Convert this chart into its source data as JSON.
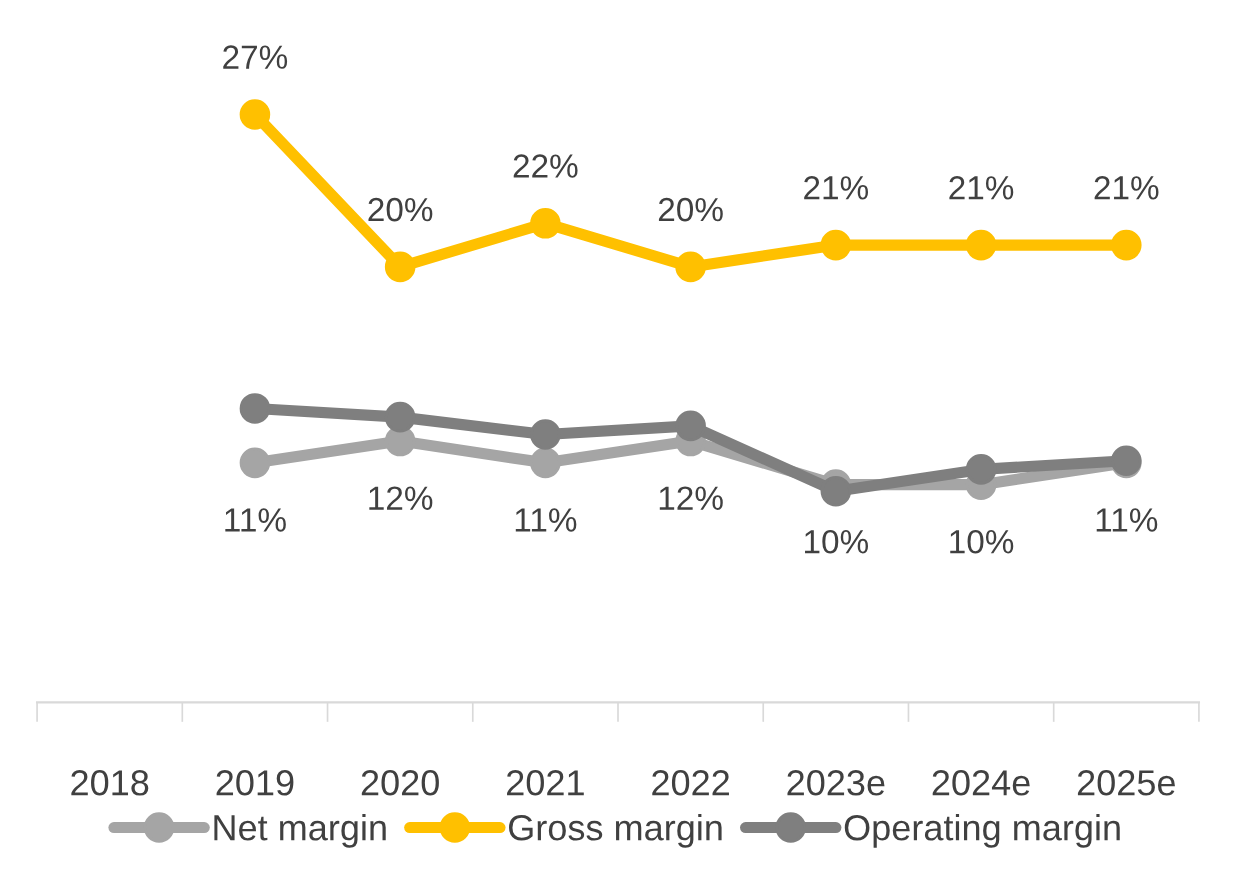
{
  "chart_data": {
    "type": "line",
    "categories": [
      "2018",
      "2019",
      "2020",
      "2021",
      "2022",
      "2023e",
      "2024e",
      "2025e"
    ],
    "series": [
      {
        "name": "Net margin",
        "color": "#a5a5a5",
        "values": [
          null,
          11,
          12,
          11,
          12,
          10,
          10,
          11
        ],
        "value_labels": [
          null,
          "11%",
          "12%",
          "11%",
          "12%",
          "10%",
          "10%",
          "11%"
        ]
      },
      {
        "name": "Gross margin",
        "color": "#ffc000",
        "values": [
          null,
          27,
          20,
          22,
          20,
          21,
          21,
          21
        ],
        "value_labels": [
          null,
          "27%",
          "20%",
          "22%",
          "20%",
          "21%",
          "21%",
          "21%"
        ]
      },
      {
        "name": "Operating margin",
        "color": "#7f7f7f",
        "values": [
          null,
          13.5,
          13.1,
          12.3,
          12.7,
          9.7,
          10.7,
          11.1
        ]
      }
    ],
    "tick_labels": "x",
    "grid": false,
    "legend": "bottom",
    "marker": "circle",
    "line_style": "solid"
  }
}
